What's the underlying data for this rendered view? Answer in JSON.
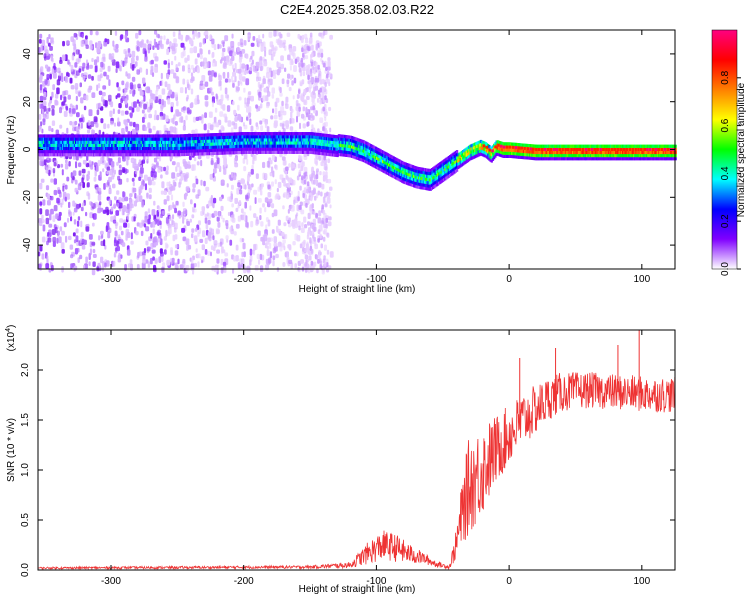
{
  "page": {
    "title": "C2E4.2025.358.02.03.R22"
  },
  "chart_data": [
    {
      "type": "heatmap",
      "title": "C2E4.2025.358.02.03.R22",
      "xlabel": "Height of straight line (km)",
      "ylabel": "Frequency (Hz)",
      "xlim": [
        -355,
        125
      ],
      "ylim": [
        -50,
        50
      ],
      "xticks": [
        -300,
        -200,
        -100,
        0,
        100
      ],
      "yticks": [
        -40,
        -20,
        0,
        20,
        40
      ],
      "grid": false,
      "colorbar": {
        "label": "Normalized spectral amplitude",
        "range": [
          0,
          1
        ],
        "ticks": [
          0.0,
          0.2,
          0.4,
          0.6,
          0.8
        ],
        "tick_labels": [
          "0.0",
          "0.2",
          "0.4",
          "0.6",
          "0.8"
        ],
        "colormap": [
          "#ffffff",
          "#8000ff",
          "#0000ff",
          "#00ffff",
          "#00ff00",
          "#ffff00",
          "#ff8000",
          "#ff0000",
          "#ff0080"
        ]
      },
      "center_track": {
        "x": [
          -355,
          -300,
          -250,
          -200,
          -150,
          -135,
          -120,
          -110,
          -100,
          -90,
          -80,
          -70,
          -60,
          -50,
          -40,
          -30,
          -22,
          -18,
          -14,
          -10,
          -5,
          0,
          20,
          50,
          80,
          100,
          125
        ],
        "y": [
          3,
          3,
          3,
          4,
          4,
          3,
          2,
          0,
          -3,
          -6,
          -9,
          -11,
          -12,
          -8,
          -4,
          0,
          2,
          1,
          -1,
          2,
          1,
          1,
          0,
          0,
          0,
          0,
          0
        ]
      },
      "background_noise_x_range": [
        -355,
        -135
      ]
    },
    {
      "type": "line",
      "xlabel": "Height of straight line (km)",
      "ylabel": "SNR (10 * v/v)",
      "y_multiplier_label": "(x10^4)",
      "y_multiplier_base": "(x10",
      "y_multiplier_exp": "4",
      "y_multiplier_close": ")",
      "xlim": [
        -355,
        125
      ],
      "ylim": [
        0,
        2.4
      ],
      "xticks": [
        -300,
        -200,
        -100,
        0,
        100
      ],
      "yticks": [
        0.0,
        0.5,
        1.0,
        1.5,
        2.0
      ],
      "ytick_labels": [
        "0.0",
        "0.5",
        "1.0",
        "1.5",
        "2.0"
      ],
      "grid": false,
      "series": [
        {
          "color": "#ee3333",
          "envelope_x": [
            -355,
            -150,
            -120,
            -105,
            -95,
            -85,
            -75,
            -65,
            -55,
            -45,
            -40,
            -35,
            -30,
            -20,
            -10,
            0,
            10,
            20,
            30,
            40,
            60,
            80,
            100,
            125
          ],
          "envelope_y": [
            0.02,
            0.03,
            0.05,
            0.18,
            0.25,
            0.22,
            0.16,
            0.12,
            0.06,
            0.03,
            0.25,
            0.6,
            0.85,
            1.0,
            1.2,
            1.35,
            1.5,
            1.6,
            1.72,
            1.78,
            1.8,
            1.78,
            1.76,
            1.75
          ],
          "noise_amplitude": [
            0.01,
            0.015,
            0.03,
            0.12,
            0.15,
            0.14,
            0.1,
            0.06,
            0.03,
            0.02,
            0.15,
            0.35,
            0.5,
            0.45,
            0.35,
            0.3,
            0.28,
            0.25,
            0.22,
            0.2,
            0.18,
            0.18,
            0.18,
            0.18
          ],
          "spikes": [
            {
              "x": 98,
              "y": 2.45
            },
            {
              "x": 82,
              "y": 2.25
            },
            {
              "x": 35,
              "y": 2.22
            },
            {
              "x": 8,
              "y": 2.12
            }
          ]
        }
      ]
    }
  ]
}
